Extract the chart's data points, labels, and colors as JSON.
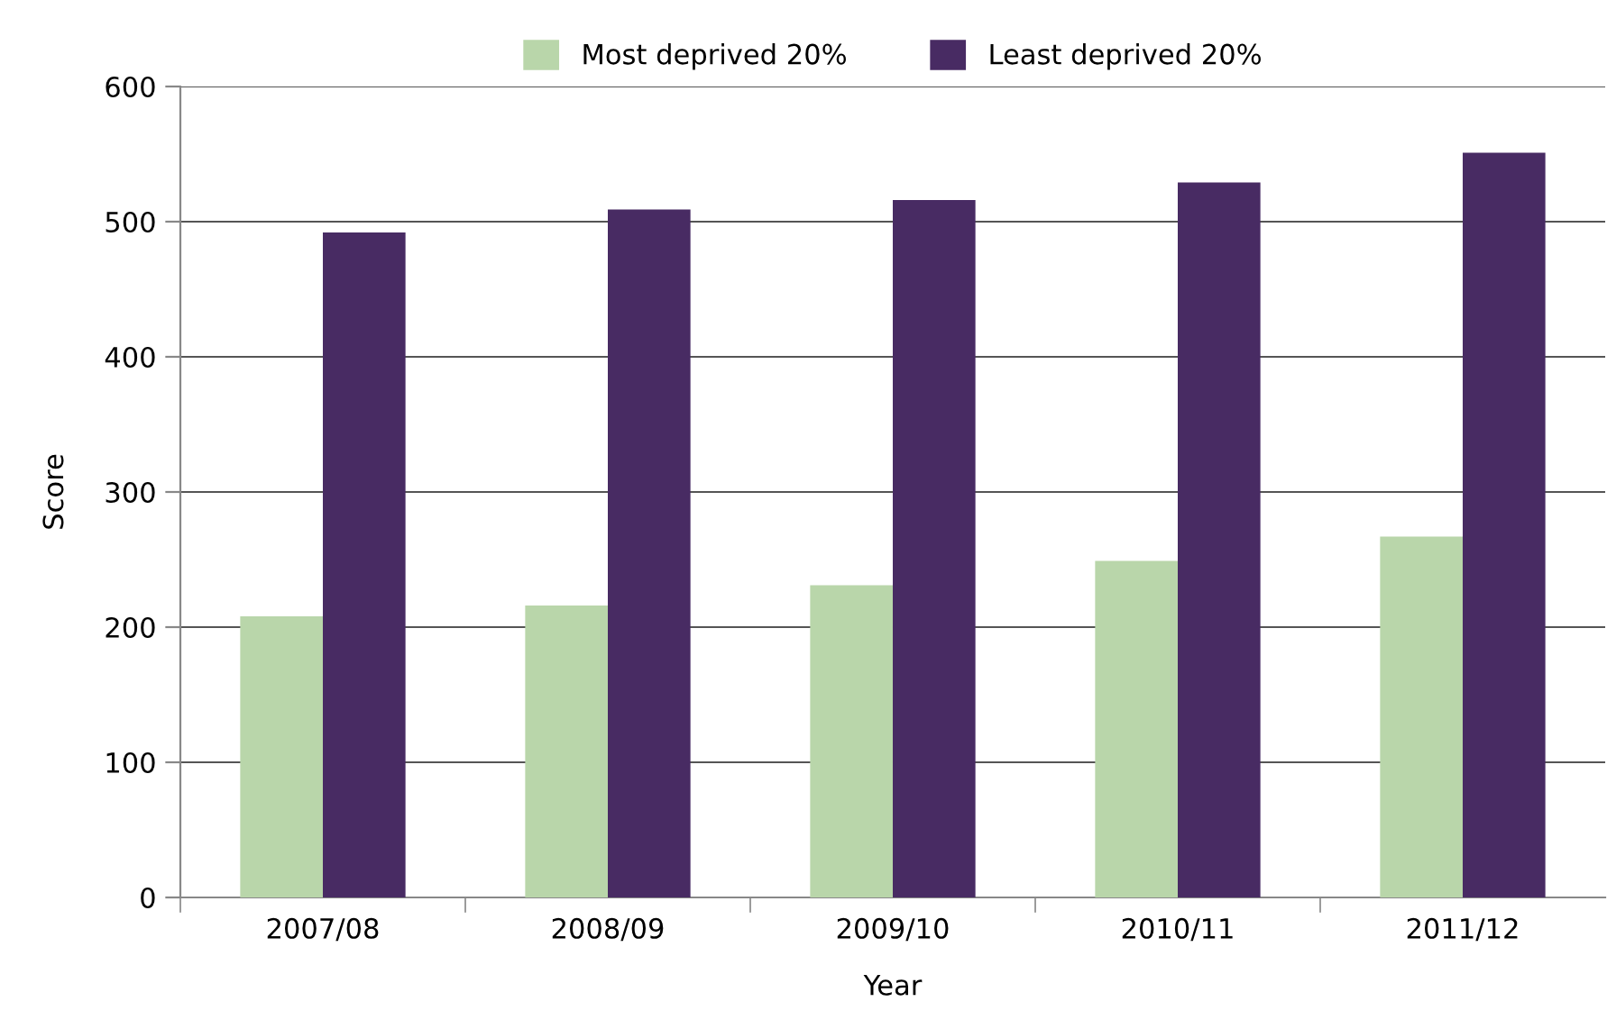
{
  "chart_data": {
    "type": "bar",
    "xlabel": "Year",
    "ylabel": "Score",
    "categories": [
      "2007/08",
      "2008/09",
      "2009/10",
      "2010/11",
      "2011/12"
    ],
    "series": [
      {
        "name": "Most deprived 20%",
        "color": "#b9d6aa",
        "values": [
          208,
          216,
          231,
          249,
          267
        ]
      },
      {
        "name": "Least deprived 20%",
        "color": "#482b63",
        "values": [
          492,
          509,
          516,
          529,
          551
        ]
      }
    ],
    "ylim": [
      0,
      600
    ],
    "yticks": [
      0,
      100,
      200,
      300,
      400,
      500,
      600
    ],
    "grid": "y",
    "legend": "top"
  }
}
